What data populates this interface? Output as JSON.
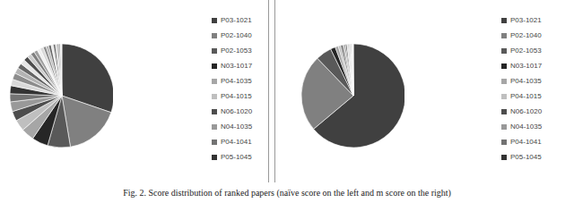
{
  "chart_data": [
    {
      "type": "pie",
      "categories": [
        "P03-1021",
        "P02-1040",
        "P02-1053",
        "N03-1017",
        "P04-1035",
        "P04-1015",
        "N06-1020",
        "N04-1035",
        "P04-1041",
        "P05-1045",
        null,
        null,
        null,
        null,
        null,
        null,
        null,
        null,
        null,
        null,
        null,
        null,
        null,
        null,
        null,
        null,
        null,
        null,
        null,
        null
      ],
      "values": [
        30,
        17,
        7,
        5,
        4,
        3.5,
        3,
        3,
        2.5,
        2.5,
        2,
        2,
        1.8,
        1.6,
        1.5,
        1.4,
        1.3,
        1.2,
        1.1,
        1,
        1,
        0.9,
        0.8,
        0.8,
        0.7,
        0.6,
        0.6,
        0.5,
        0.5,
        0.4
      ],
      "colors": [
        "#404040",
        "#808080",
        "#595959",
        "#262626",
        "#a6a6a6",
        "#bfbfbf",
        "#4d4d4d",
        "#999999",
        "#737373",
        "#333333",
        "#d9d9d9",
        "#8c8c8c",
        "#b3b3b3",
        "#666666",
        "#e6e6e6",
        "#4d4d4d",
        "#cccccc",
        "#7f7f7f",
        "#a0a0a0",
        "#f0f0f0",
        "#d9d9d9",
        "#8c8c8c",
        "#b3b3b3",
        "#666666",
        "#e6e6e6",
        "#4d4d4d",
        "#cccccc",
        "#7f7f7f",
        "#a0a0a0",
        "#f0f0f0"
      ]
    },
    {
      "type": "pie",
      "categories": [
        "P03-1021",
        "P02-1040",
        "P02-1053",
        "N03-1017",
        "P04-1035",
        "P04-1015",
        "N06-1020",
        "N04-1035",
        "P04-1041",
        "P05-1045",
        null,
        null,
        null,
        null,
        null,
        null,
        null,
        null,
        null,
        null
      ],
      "values": [
        64,
        24,
        5,
        1.5,
        1,
        0.8,
        0.6,
        0.5,
        0.4,
        0.4,
        0.3,
        0.3,
        0.3,
        0.2,
        0.2,
        0.2,
        0.2,
        0.1,
        0.1,
        0.1
      ],
      "colors": [
        "#404040",
        "#808080",
        "#595959",
        "#262626",
        "#a6a6a6",
        "#bfbfbf",
        "#4d4d4d",
        "#999999",
        "#737373",
        "#333333",
        "#d9d9d9",
        "#8c8c8c",
        "#b3b3b3",
        "#666666",
        "#e6e6e6",
        "#4d4d4d",
        "#cccccc",
        "#7f7f7f",
        "#a0a0a0",
        "#f0f0f0"
      ]
    }
  ],
  "caption": "Fig. 2. Score distribution of ranked papers (naïve score on the left and m score on the right)"
}
